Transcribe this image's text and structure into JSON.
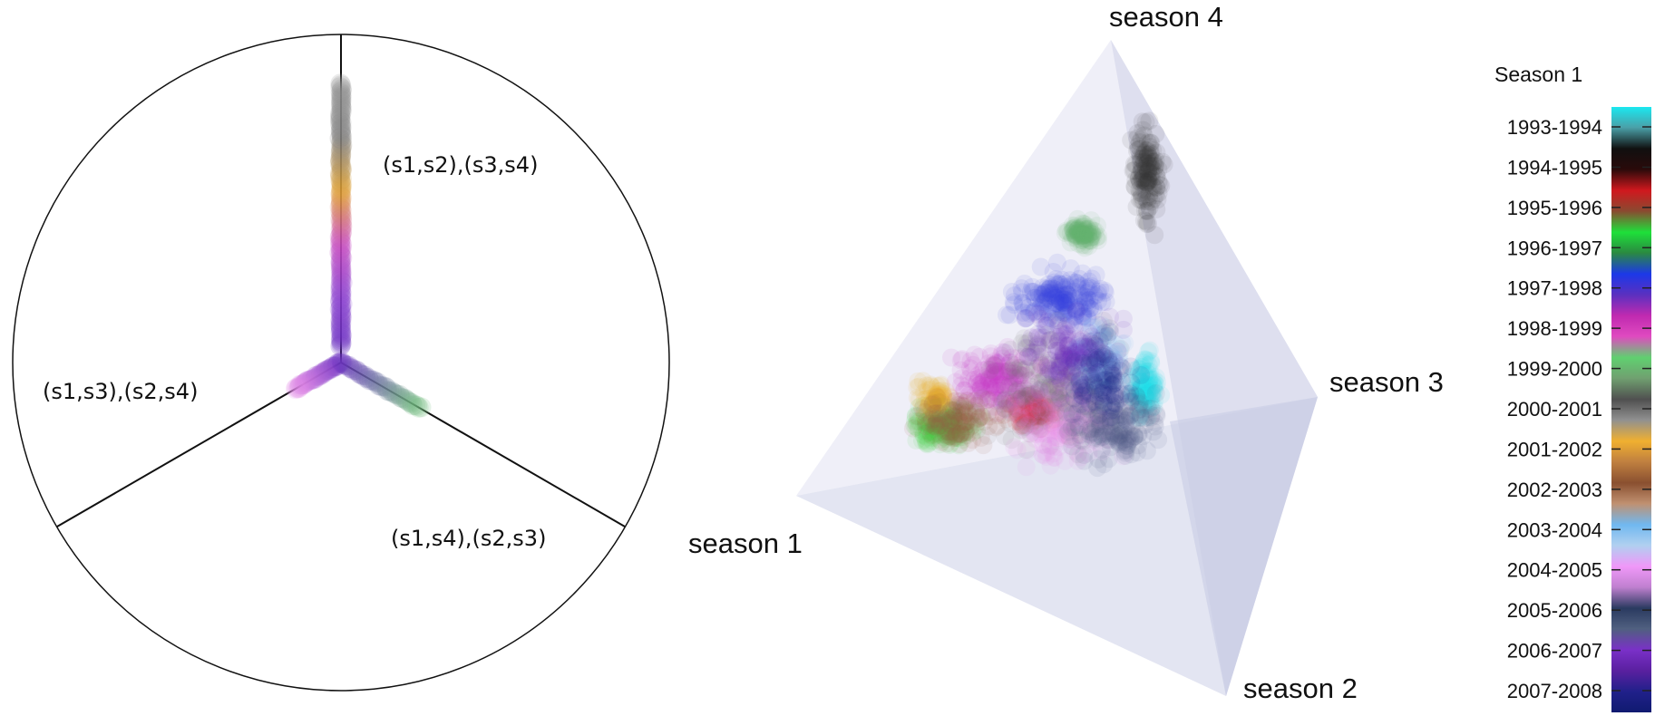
{
  "chart_data": [
    {
      "type": "scatter",
      "subtype": "radial-three-axis",
      "region_labels": [
        "(s1,s2),(s3,s4)",
        "(s1,s3),(s2,s4)",
        "(s1,s4),(s2,s3)"
      ],
      "clusters": [
        {
          "axis": "up",
          "from": 0.05,
          "to": 0.85,
          "color_sequence": [
            "#6a2fc1",
            "#8a3fd0",
            "#c84ac0",
            "#e0a030",
            "#808080",
            "#909090"
          ]
        },
        {
          "axis": "left-down",
          "from": 0.0,
          "to": 0.16,
          "color_sequence": [
            "#6a2fc1",
            "#e58ae8"
          ]
        },
        {
          "axis": "right-down",
          "from": 0.0,
          "to": 0.28,
          "color_sequence": [
            "#6a2fc1",
            "#6fbf7a"
          ]
        }
      ]
    },
    {
      "type": "scatter",
      "subtype": "3d-simplex",
      "vertex_labels": [
        "season 4",
        "season 3",
        "season 1",
        "season 2"
      ],
      "clusters": [
        {
          "season": "1993-1994",
          "color": "#22e0e8"
        },
        {
          "season": "1994-1995",
          "color": "#3a3a3a"
        },
        {
          "season": "1995-1996",
          "color": "#e0202a"
        },
        {
          "season": "1996-1997",
          "color": "#3ecf3e"
        },
        {
          "season": "1997-1998",
          "color": "#3340e0"
        },
        {
          "season": "1998-1999",
          "color": "#c53ac6"
        },
        {
          "season": "1999-2000",
          "color": "#66b070"
        },
        {
          "season": "2000-2001",
          "color": "#707070"
        },
        {
          "season": "2001-2002",
          "color": "#e8b030"
        },
        {
          "season": "2002-2003",
          "color": "#9a5a40"
        },
        {
          "season": "2003-2004",
          "color": "#7ac0f0"
        },
        {
          "season": "2004-2005",
          "color": "#ee88ee"
        },
        {
          "season": "2005-2006",
          "color": "#4a5a80"
        },
        {
          "season": "2006-2007",
          "color": "#6a2fc1"
        },
        {
          "season": "2007-2008",
          "color": "#1a2080"
        }
      ]
    }
  ],
  "colorbar": {
    "title": "Season 1",
    "labels": [
      "1993-1994",
      "1994-1995",
      "1995-1996",
      "1996-1997",
      "1997-1998",
      "1998-1999",
      "1999-2000",
      "2000-2001",
      "2001-2002",
      "2002-2003",
      "2003-2004",
      "2004-2005",
      "2005-2006",
      "2006-2007",
      "2007-2008"
    ],
    "gradient": [
      "#1be8f0",
      "#4aa0a8",
      "#101010",
      "#2a0a0a",
      "#d0181e",
      "#8a4a30",
      "#1ee03a",
      "#2a8a40",
      "#1c38e8",
      "#5a30c0",
      "#c02ab0",
      "#e04ac0",
      "#60d070",
      "#70a070",
      "#505050",
      "#909090",
      "#f0b030",
      "#c08040",
      "#8a5030",
      "#c09070",
      "#70b8f0",
      "#b0d0f0",
      "#f098f8",
      "#c080d0",
      "#2a3a60",
      "#506080",
      "#7a30c8",
      "#5a20a0",
      "#20208a",
      "#101a70"
    ]
  }
}
